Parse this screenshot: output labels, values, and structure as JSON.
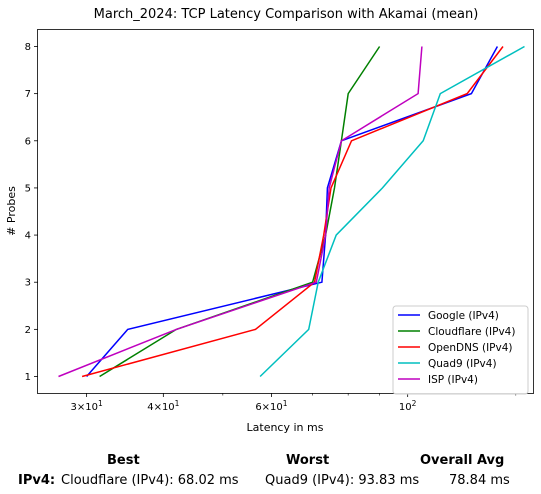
{
  "chart_data": {
    "type": "line",
    "title": "March_2024: TCP Latency Comparison with Akamai (mean)",
    "xlabel": "Latency in ms",
    "ylabel": "# Probes",
    "xscale": "log",
    "xlim": [
      25,
      160
    ],
    "ylim": [
      0.65,
      8.35
    ],
    "xticks": [
      {
        "value": 30,
        "base": "3×10",
        "exp": "1"
      },
      {
        "value": 40,
        "base": "4×10",
        "exp": "1"
      },
      {
        "value": 60,
        "base": "6×10",
        "exp": "1"
      },
      {
        "value": 100,
        "base": "10",
        "exp": "2"
      }
    ],
    "yticks": [
      1,
      2,
      3,
      4,
      5,
      6,
      7,
      8
    ],
    "legend_position": "lower-right",
    "grid": false,
    "series": [
      {
        "name": "Google (IPv4)",
        "color": "#0000ff",
        "points": [
          [
            30,
            1
          ],
          [
            35,
            2
          ],
          [
            72.5,
            3
          ],
          [
            73.5,
            4
          ],
          [
            74,
            5
          ],
          [
            78,
            6
          ],
          [
            127,
            7
          ],
          [
            140,
            8
          ]
        ]
      },
      {
        "name": "Cloudflare (IPv4)",
        "color": "#008000",
        "points": [
          [
            31.5,
            1
          ],
          [
            42,
            2
          ],
          [
            70,
            3
          ],
          [
            73.5,
            4
          ],
          [
            76,
            5
          ],
          [
            78,
            6
          ],
          [
            80,
            7
          ],
          [
            90,
            8
          ]
        ]
      },
      {
        "name": "OpenDNS (IPv4)",
        "color": "#ff0000",
        "points": [
          [
            29.5,
            1
          ],
          [
            56.5,
            2
          ],
          [
            70.5,
            3
          ],
          [
            73,
            4
          ],
          [
            75,
            5
          ],
          [
            81,
            6
          ],
          [
            125,
            7
          ],
          [
            143,
            8
          ]
        ]
      },
      {
        "name": "Quad9 (IPv4)",
        "color": "#00bfbf",
        "points": [
          [
            57.5,
            1
          ],
          [
            69,
            2
          ],
          [
            71.5,
            3
          ],
          [
            76.5,
            4
          ],
          [
            91,
            5
          ],
          [
            106,
            6
          ],
          [
            113,
            7
          ],
          [
            155,
            8
          ]
        ]
      },
      {
        "name": "ISP (IPv4)",
        "color": "#bf00bf",
        "points": [
          [
            27,
            1
          ],
          [
            42,
            2
          ],
          [
            71,
            3
          ],
          [
            73.5,
            4
          ],
          [
            74.5,
            5
          ],
          [
            78,
            6
          ],
          [
            104,
            7
          ],
          [
            105.5,
            8
          ]
        ]
      }
    ]
  },
  "footer": {
    "headers": {
      "best": "Best",
      "worst": "Worst",
      "overall": "Overall Avg"
    },
    "row_label": "IPv4:",
    "best_value": "Cloudflare (IPv4): 68.02 ms",
    "worst_value": "Quad9 (IPv4): 93.83 ms",
    "overall_value": "78.84 ms"
  }
}
